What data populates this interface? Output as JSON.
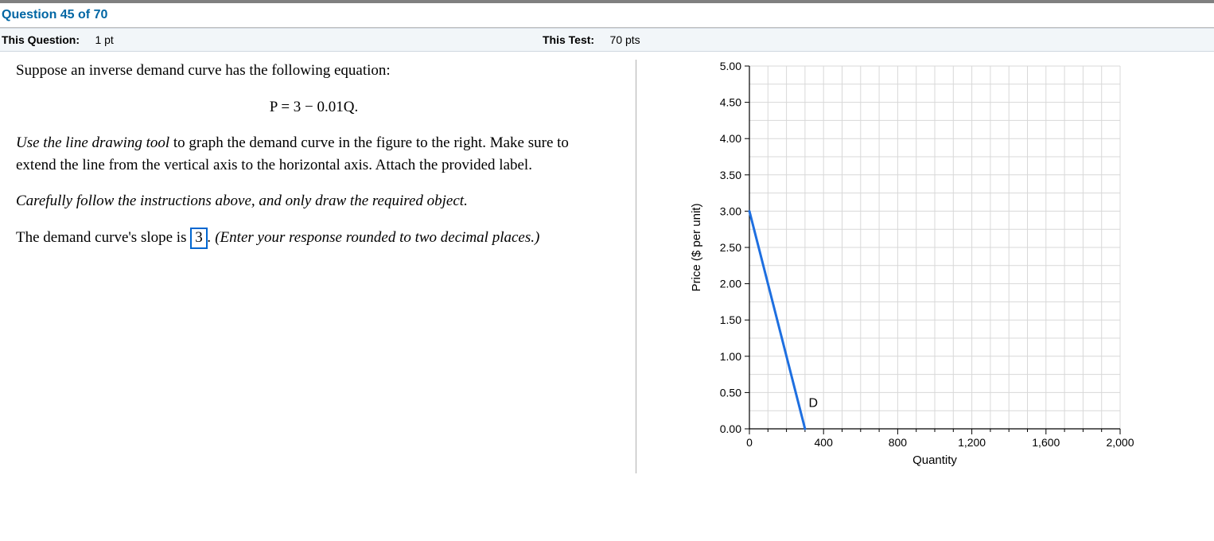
{
  "header": {
    "question_label": "Question 45 of 70"
  },
  "points_bar": {
    "this_question_label": "This Question:",
    "this_question_pts": "1 pt",
    "this_test_label": "This Test:",
    "this_test_pts": "70 pts"
  },
  "question": {
    "intro": "Suppose an inverse demand curve has the following equation:",
    "equation": "P = 3 − 0.01Q.",
    "instruction1_prefix_italic": "Use the line drawing tool",
    "instruction1_rest": " to graph the demand curve in the figure to the right.  Make sure to extend the line from the vertical axis to the horizontal axis. Attach the provided label.",
    "instruction2_italic": "Carefully follow the instructions above, and only draw the required object.",
    "slope_prefix": "The demand curve's slope is ",
    "slope_input": "3",
    "slope_suffix_italic": ".  (Enter your response rounded to two decimal places.)"
  },
  "chart": {
    "type": "line",
    "xlabel": "Quantity",
    "ylabel": "Price ($ per unit)",
    "xlim": [
      0,
      2000
    ],
    "ylim": [
      0,
      5.0
    ],
    "x_major_ticks": [
      0,
      400,
      800,
      1200,
      1600,
      2000
    ],
    "x_major_labels": [
      "0",
      "400",
      "800",
      "1,200",
      "1,600",
      "2,000"
    ],
    "x_minor_step": 100,
    "y_major_ticks": [
      0.0,
      0.5,
      1.0,
      1.5,
      2.0,
      2.5,
      3.0,
      3.5,
      4.0,
      4.5,
      5.0
    ],
    "y_major_labels": [
      "0.00",
      "0.50",
      "1.00",
      "1.50",
      "2.00",
      "2.50",
      "3.00",
      "3.50",
      "4.00",
      "4.50",
      "5.00"
    ],
    "y_minor_step": 0.25,
    "grid_color": "#d8d8d8",
    "axis_color": "#000000",
    "tick_color": "#000000",
    "background_color": "#ffffff",
    "line": {
      "color": "#1e6fe0",
      "width": 3,
      "points": [
        [
          0,
          3.0
        ],
        [
          300,
          0.0
        ]
      ],
      "label": "D",
      "label_pos": [
        320,
        0.3
      ]
    },
    "axis_label_fontsize": 15,
    "tick_fontsize": 14
  }
}
